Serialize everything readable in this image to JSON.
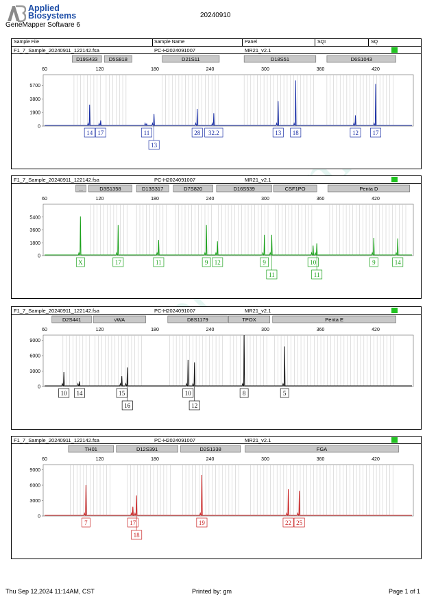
{
  "app": {
    "brand_line1": "Applied",
    "brand_line2": "Biosystems",
    "software": "GeneMapper Software 6",
    "run_date": "20240910"
  },
  "table_header": {
    "sample_file": "Sample File",
    "sample_name": "Sample Name",
    "panel": "Panel",
    "sqi": "SQI",
    "sq": "SQ"
  },
  "footer": {
    "printed_at": "Thu Sep 12,2024 11:14AM, CST",
    "printed_by": "Printed by: gm",
    "page": "Page 1 of 1"
  },
  "colors": {
    "blue": "#1a2fa6",
    "green": "#1aa01a",
    "black": "#111111",
    "red": "#c81e1e",
    "flag": "#22c322",
    "bin": "#c8c8c8",
    "marker_bg": "#c8c8c8",
    "watermark": "#cfeee6"
  },
  "chart_data": [
    {
      "type": "line",
      "dye": "blue",
      "sample_file": "F1_7_Sample_20240911_122142.fsa",
      "sample_name": "PC-H2024091007",
      "panel": "MR21_v2.1",
      "xlim": [
        60,
        460
      ],
      "x_ticks": [
        "60",
        "120",
        "180",
        "240",
        "300",
        "360",
        "420"
      ],
      "ylim": [
        0,
        7200
      ],
      "y_ticks": [
        "5700",
        "3800",
        "1900",
        "0"
      ],
      "markers": [
        {
          "name": "D19S433",
          "start": 90,
          "end": 122
        },
        {
          "name": "D5S818",
          "start": 125,
          "end": 155
        },
        {
          "name": "D21S11",
          "start": 188,
          "end": 250
        },
        {
          "name": "D18S51",
          "start": 277,
          "end": 355
        },
        {
          "name": "D6S1043",
          "start": 367,
          "end": 442
        }
      ],
      "peaks": [
        {
          "allele": "14",
          "x": 109,
          "height": 3000
        },
        {
          "allele": "17",
          "x": 121,
          "height": 800
        },
        {
          "allele": "11",
          "x": 171,
          "height": 350
        },
        {
          "allele": "13",
          "x": 179,
          "height": 1700
        },
        {
          "allele": "28",
          "x": 226,
          "height": 2400
        },
        {
          "allele": "32.2",
          "x": 244,
          "height": 1800
        },
        {
          "allele": "13",
          "x": 314,
          "height": 3500
        },
        {
          "allele": "18",
          "x": 333,
          "height": 6400
        },
        {
          "allele": "12",
          "x": 398,
          "height": 1500
        },
        {
          "allele": "17",
          "x": 420,
          "height": 5900
        }
      ],
      "bins": [
        [
          92,
          122
        ],
        [
          127,
          152
        ],
        [
          188,
          252
        ],
        [
          277,
          356
        ],
        [
          367,
          440
        ]
      ]
    },
    {
      "type": "line",
      "dye": "green",
      "sample_file": "F1_7_Sample_20240911_122142.fsa",
      "sample_name": "PC-H2024091007",
      "panel": "MR21_v2.1",
      "xlim": [
        60,
        460
      ],
      "x_ticks": [
        "60",
        "120",
        "180",
        "240",
        "300",
        "360",
        "420"
      ],
      "ylim": [
        0,
        7200
      ],
      "y_ticks": [
        "5400",
        "3600",
        "1800",
        "0"
      ],
      "markers": [
        {
          "name": "...",
          "start": 94,
          "end": 105
        },
        {
          "name": "D3S1358",
          "start": 108,
          "end": 155
        },
        {
          "name": "D13S317",
          "start": 160,
          "end": 195
        },
        {
          "name": "D7S820",
          "start": 200,
          "end": 243
        },
        {
          "name": "D16S539",
          "start": 247,
          "end": 307
        },
        {
          "name": "CSF1PO",
          "start": 309,
          "end": 356
        },
        {
          "name": "Penta D",
          "start": 368,
          "end": 457
        }
      ],
      "peaks": [
        {
          "allele": "X",
          "x": 99,
          "height": 5500
        },
        {
          "allele": "17",
          "x": 140,
          "height": 4300
        },
        {
          "allele": "11",
          "x": 184,
          "height": 2200
        },
        {
          "allele": "9",
          "x": 236,
          "height": 4300
        },
        {
          "allele": "12",
          "x": 248,
          "height": 2000
        },
        {
          "allele": "9",
          "x": 299,
          "height": 2900
        },
        {
          "allele": "11",
          "x": 307,
          "height": 2900
        },
        {
          "allele": "10",
          "x": 352,
          "height": 1400
        },
        {
          "allele": "11",
          "x": 356,
          "height": 1700
        },
        {
          "allele": "9",
          "x": 418,
          "height": 2500
        },
        {
          "allele": "14",
          "x": 444,
          "height": 2400
        }
      ],
      "bins": [
        [
          110,
          152
        ],
        [
          160,
          194
        ],
        [
          202,
          242
        ],
        [
          249,
          305
        ],
        [
          311,
          354
        ],
        [
          370,
          455
        ]
      ]
    },
    {
      "type": "line",
      "dye": "black",
      "sample_file": "F1_7_Sample_20240911_122142.fsa",
      "sample_name": "PC-H2024091007",
      "panel": "MR21_v2.1",
      "xlim": [
        60,
        460
      ],
      "x_ticks": [
        "60",
        "120",
        "180",
        "240",
        "300",
        "360",
        "420"
      ],
      "ylim": [
        0,
        10000
      ],
      "y_ticks": [
        "9000",
        "6000",
        "3000",
        "0"
      ],
      "markers": [
        {
          "name": "D2S441",
          "start": 68,
          "end": 111
        },
        {
          "name": "vWA",
          "start": 113,
          "end": 170
        },
        {
          "name": "D8S1179",
          "start": 194,
          "end": 259
        },
        {
          "name": "TPOX",
          "start": 260,
          "end": 305
        },
        {
          "name": "Penta E",
          "start": 308,
          "end": 442
        }
      ],
      "peaks": [
        {
          "allele": "10",
          "x": 81,
          "height": 2800
        },
        {
          "allele": "14",
          "x": 98,
          "height": 1000
        },
        {
          "allele": "15",
          "x": 144,
          "height": 2000
        },
        {
          "allele": "16",
          "x": 150,
          "height": 3700
        },
        {
          "allele": "10",
          "x": 216,
          "height": 5200
        },
        {
          "allele": "12",
          "x": 223,
          "height": 4700
        },
        {
          "allele": "8",
          "x": 277,
          "height": 10000
        },
        {
          "allele": "5",
          "x": 321,
          "height": 7800
        }
      ],
      "bins": [
        [
          80,
          110
        ],
        [
          115,
          168
        ],
        [
          196,
          256
        ],
        [
          262,
          303
        ],
        [
          310,
          440
        ]
      ]
    },
    {
      "type": "line",
      "dye": "red",
      "sample_file": "F1_7_Sample_20240911_122142.fsa",
      "sample_name": "PC-H2024091007",
      "panel": "MR21_v2.1",
      "xlim": [
        60,
        460
      ],
      "x_ticks": [
        "60",
        "120",
        "180",
        "240",
        "300",
        "360",
        "420"
      ],
      "ylim": [
        0,
        10000
      ],
      "y_ticks": [
        "9000",
        "6000",
        "3000",
        "0"
      ],
      "markers": [
        {
          "name": "TH01",
          "start": 86,
          "end": 135
        },
        {
          "name": "D12S391",
          "start": 138,
          "end": 205
        },
        {
          "name": "D2S1338",
          "start": 208,
          "end": 273
        },
        {
          "name": "FGA",
          "start": 278,
          "end": 445
        }
      ],
      "peaks": [
        {
          "allele": "7",
          "x": 105,
          "height": 6000
        },
        {
          "allele": "17",
          "x": 156,
          "height": 1800
        },
        {
          "allele": "18",
          "x": 160,
          "height": 4000
        },
        {
          "allele": "19",
          "x": 231,
          "height": 8000
        },
        {
          "allele": "22",
          "x": 325,
          "height": 5200
        },
        {
          "allele": "25",
          "x": 337,
          "height": 4900
        }
      ],
      "bins": [
        [
          88,
          132
        ],
        [
          150,
          200
        ],
        [
          210,
          272
        ],
        [
          284,
          442
        ]
      ]
    }
  ]
}
